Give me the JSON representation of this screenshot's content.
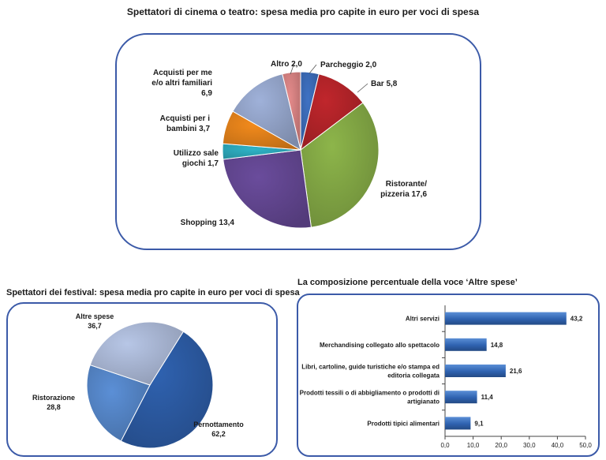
{
  "charts": [
    {
      "id": "cinema",
      "title": "Spettatori di cinema o teatro: spesa media pro capite in euro per voci di spesa",
      "chart_data": {
        "type": "pie",
        "title": "Spettatori di cinema o teatro: spesa media pro capite in euro per voci di spesa",
        "slices": [
          {
            "label": [
              "Parcheggio 2,0"
            ],
            "value": 2.0,
            "color": "#3f72c4"
          },
          {
            "label": [
              "Bar 5,8"
            ],
            "value": 5.8,
            "color": "#c0262c"
          },
          {
            "label": [
              "Ristorante/",
              "pizzeria 17,6"
            ],
            "value": 17.6,
            "color": "#8db54a"
          },
          {
            "label": [
              "Shopping 13,4"
            ],
            "value": 13.4,
            "color": "#6a4c9c"
          },
          {
            "label": [
              "Utilizzo sale",
              "giochi 1,7"
            ],
            "value": 1.7,
            "color": "#2fb3c7"
          },
          {
            "label": [
              "Acquisti per i",
              "bambini 3,7"
            ],
            "value": 3.7,
            "color": "#f28a1c"
          },
          {
            "label": [
              "Acquisti per me",
              "e/o altri familiari",
              "6,9"
            ],
            "value": 6.9,
            "color": "#9fb1d9"
          },
          {
            "label": [
              "Altro 2,0"
            ],
            "value": 2.0,
            "color": "#e58b8b"
          }
        ]
      }
    },
    {
      "id": "festival",
      "title": "Spettatori dei festival: spesa media pro capite in euro per voci di spesa",
      "chart_data": {
        "type": "pie",
        "title": "Spettatori dei festival: spesa media pro capite in euro per voci di spesa",
        "slices": [
          {
            "label": [
              "Pernottamento",
              "62,2"
            ],
            "value": 62.2,
            "color": "#2f62b0"
          },
          {
            "label": [
              "Ristorazione",
              "28,8"
            ],
            "value": 28.8,
            "color": "#5b8fd6"
          },
          {
            "label": [
              "Altre spese",
              "36,7"
            ],
            "value": 36.7,
            "color": "#b7c6e6"
          }
        ]
      }
    },
    {
      "id": "altre",
      "title": "La composizione percentuale della voce ‘Altre spese’",
      "chart_data": {
        "type": "bar",
        "orientation": "horizontal",
        "title": "La composizione percentuale della voce ‘Altre spese’",
        "categories": [
          [
            "Altri servizi"
          ],
          [
            "Merchandising collegato allo spettacolo"
          ],
          [
            "Libri, cartoline, guide turistiche e/o stampa ed",
            "editoria collegata"
          ],
          [
            "Prodotti tessili o di abbigliamento o prodotti di",
            "artigianato"
          ],
          [
            "Prodotti tipici alimentari"
          ]
        ],
        "values": [
          43.2,
          14.8,
          21.6,
          11.4,
          9.1
        ],
        "value_labels": [
          "43,2",
          "14,8",
          "21,6",
          "11,4",
          "9,1"
        ],
        "xlim": [
          0,
          50
        ],
        "xticks": [
          "0,0",
          "10,0",
          "20,0",
          "30,0",
          "40,0",
          "50,0"
        ],
        "bar_color": "#2f62b0",
        "grid": false
      }
    }
  ]
}
